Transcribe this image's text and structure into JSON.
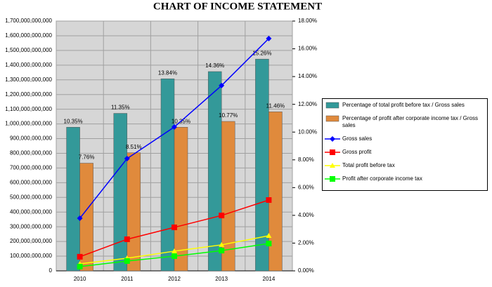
{
  "chart_data": {
    "type": "bar-line",
    "title": "CHART OF INCOME STATEMENT",
    "categories": [
      "2010",
      "2011",
      "2012",
      "2013",
      "2014"
    ],
    "ylim": [
      0,
      1700000000000
    ],
    "yticks": [
      {
        "value": 0,
        "label": "0"
      },
      {
        "value": 100000000000,
        "label": "100,000,000,000"
      },
      {
        "value": 200000000000,
        "label": "200,000,000,000"
      },
      {
        "value": 300000000000,
        "label": "300,000,000,000"
      },
      {
        "value": 400000000000,
        "label": "400,000,000,000"
      },
      {
        "value": 500000000000,
        "label": "500,000,000,000"
      },
      {
        "value": 600000000000,
        "label": "600,000,000,000"
      },
      {
        "value": 700000000000,
        "label": "700,000,000,000"
      },
      {
        "value": 800000000000,
        "label": "800,000,000,000"
      },
      {
        "value": 900000000000,
        "label": "900,000,000,000"
      },
      {
        "value": 1000000000000,
        "label": "1,000,000,000,000"
      },
      {
        "value": 1100000000000,
        "label": "1,100,000,000,000"
      },
      {
        "value": 1200000000000,
        "label": "1,200,000,000,000"
      },
      {
        "value": 1300000000000,
        "label": "1,300,000,000,000"
      },
      {
        "value": 1400000000000,
        "label": "1,400,000,000,000"
      },
      {
        "value": 1500000000000,
        "label": "1,500,000,000,000"
      },
      {
        "value": 1600000000000,
        "label": "1,600,000,000,000"
      },
      {
        "value": 1700000000000,
        "label": "1,700,000,000,000"
      }
    ],
    "y2lim": [
      0,
      18
    ],
    "y2ticks": [
      {
        "value": 0,
        "label": "0.00%"
      },
      {
        "value": 2,
        "label": "2.00%"
      },
      {
        "value": 4,
        "label": "4.00%"
      },
      {
        "value": 6,
        "label": "6.00%"
      },
      {
        "value": 8,
        "label": "8.00%"
      },
      {
        "value": 10,
        "label": "10.00%"
      },
      {
        "value": 12,
        "label": "12.00%"
      },
      {
        "value": 14,
        "label": "14.00%"
      },
      {
        "value": 16,
        "label": "16.00%"
      },
      {
        "value": 18,
        "label": "18.00%"
      }
    ],
    "grid": true,
    "series": [
      {
        "name": "Percentage of total profit before tax / Gross sales",
        "type": "bar",
        "axis": "y2",
        "color": "#339999",
        "values": [
          10.35,
          11.35,
          13.84,
          14.36,
          15.26
        ],
        "value_labels": [
          "10.35%",
          "11.35%",
          "13.84%",
          "14.36%",
          "15.26%"
        ]
      },
      {
        "name": "Percentage of profit after corporate income tax / Gross sales",
        "type": "bar",
        "axis": "y2",
        "color": "#e08a3c",
        "values": [
          7.76,
          8.51,
          10.35,
          10.77,
          11.46
        ],
        "value_labels": [
          "7.76%",
          "8.51%",
          "10.35%",
          "10.77%",
          "11.46%"
        ]
      },
      {
        "name": "Gross sales",
        "type": "line",
        "marker": "diamond",
        "color": "#0000ff",
        "values": [
          358000000000,
          764000000000,
          979000000000,
          1261000000000,
          1581000000000
        ]
      },
      {
        "name": "Gross profit",
        "type": "line",
        "marker": "square",
        "color": "#ff0000",
        "values": [
          96000000000,
          215000000000,
          296000000000,
          377000000000,
          482000000000
        ]
      },
      {
        "name": "Total profit before tax",
        "type": "line",
        "marker": "triangle",
        "color": "#ffff00",
        "values": [
          48000000000,
          86000000000,
          134000000000,
          177000000000,
          239000000000
        ]
      },
      {
        "name": "Profit after corporate income tax",
        "type": "line",
        "marker": "square",
        "color": "#00ff00",
        "values": [
          29000000000,
          67000000000,
          100000000000,
          138000000000,
          186000000000
        ]
      }
    ]
  }
}
